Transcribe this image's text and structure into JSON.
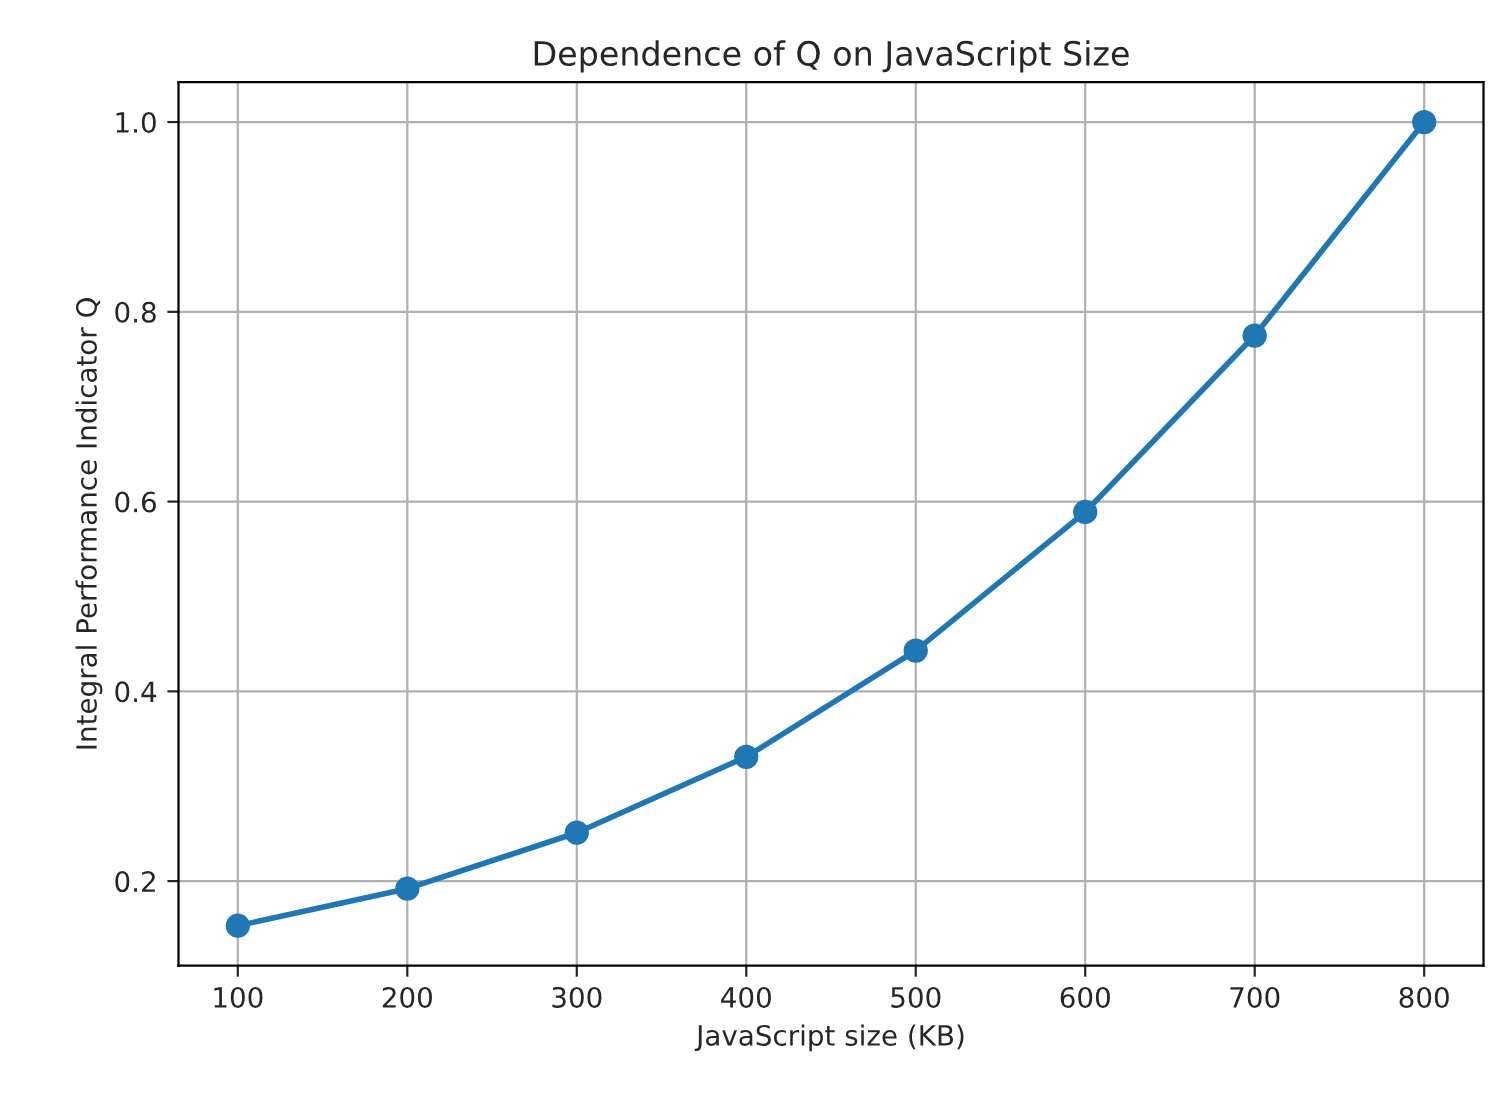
{
  "chart_data": {
    "type": "line",
    "title": "Dependence of Q on JavaScript Size",
    "xlabel": "JavaScript size (KB)",
    "ylabel": "Integral Performance Indicator Q",
    "x": [
      100,
      200,
      300,
      400,
      500,
      600,
      700,
      800
    ],
    "series": [
      {
        "color": "#1f77b4",
        "values": [
          0.153,
          0.192,
          0.251,
          0.331,
          0.443,
          0.589,
          0.775,
          1.0
        ]
      }
    ],
    "xlim": [
      65,
      835
    ],
    "ylim": [
      0.111,
      1.042
    ],
    "xticks": [
      100,
      200,
      300,
      400,
      500,
      600,
      700,
      800
    ],
    "yticks": [
      0.2,
      0.4,
      0.6,
      0.8,
      {
        "value": 1.0,
        "label": "1.0"
      }
    ],
    "grid": true,
    "marker": "circle",
    "line_style": "solid"
  }
}
